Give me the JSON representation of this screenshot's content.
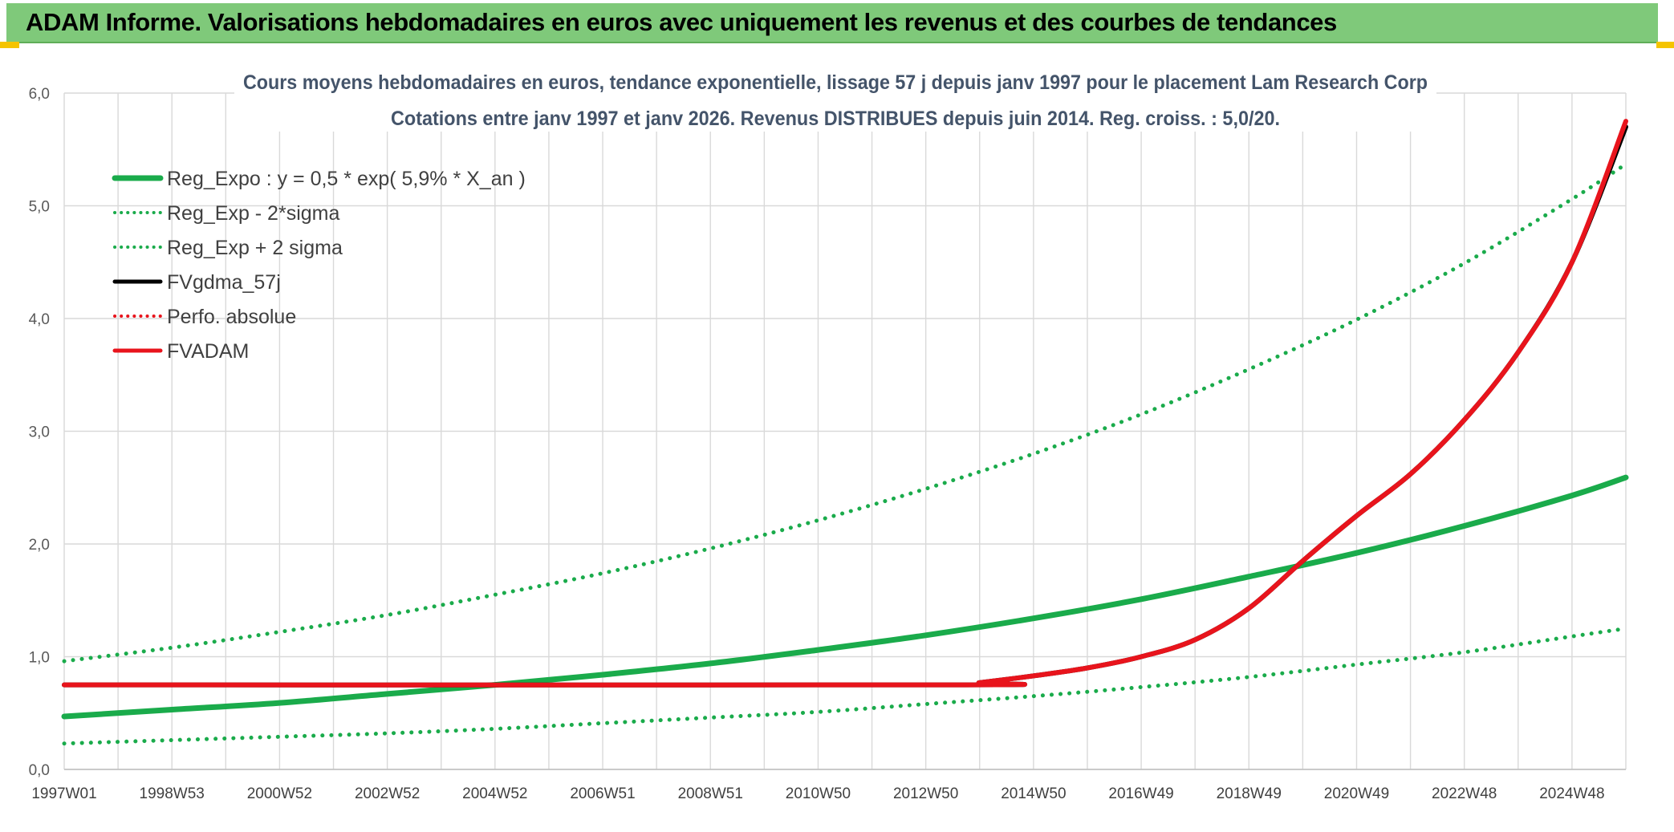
{
  "header": {
    "title": "ADAM Informe. Valorisations hebdomadaires en euros avec uniquement les revenus et des courbes de tendances"
  },
  "colors": {
    "header_bg": "#7fc97a",
    "reg_green": "#1aab4b",
    "fvadam_red": "#e8141c",
    "fvgdma_black": "#000000",
    "corner": "#f5c400"
  },
  "chart_data": {
    "type": "line",
    "title_line1": "Cours moyens hebdomadaires en euros, tendance exponentielle, lissage 57 j depuis janv 1997 pour le placement Lam Research Corp",
    "title_line2": "Cotations entre janv 1997 et janv 2026. Revenus DISTRIBUES depuis juin 2014. Reg. croiss. : 5,0/20.",
    "xlabel": "",
    "ylabel": "",
    "x_range": [
      "1997W01",
      "2026W01"
    ],
    "x_ticks": [
      "1997W01",
      "1998W53",
      "2000W52",
      "2002W52",
      "2004W52",
      "2006W51",
      "2008W51",
      "2010W50",
      "2012W50",
      "2014W50",
      "2016W49",
      "2018W49",
      "2020W49",
      "2022W48",
      "2024W48"
    ],
    "y_ticks": [
      "0,0",
      "1,0",
      "2,0",
      "3,0",
      "4,0",
      "5,0",
      "6,0"
    ],
    "ylim": [
      0,
      6
    ],
    "grid": true,
    "legend_position": "top-left",
    "series": [
      {
        "name": "Reg_Expo : y = 0,5 * exp( 5,9% *  X_an )",
        "color": "#1aab4b",
        "style": "solid",
        "x": [
          1997,
          1999,
          2001,
          2003,
          2005,
          2007,
          2009,
          2011,
          2013,
          2015,
          2017,
          2019,
          2021,
          2023,
          2025,
          2026
        ],
        "y": [
          0.47,
          0.53,
          0.59,
          0.67,
          0.75,
          0.84,
          0.94,
          1.06,
          1.19,
          1.34,
          1.51,
          1.71,
          1.92,
          2.16,
          2.43,
          2.59
        ]
      },
      {
        "name": "Reg_Exp - 2*sigma",
        "color": "#1aab4b",
        "style": "dotted",
        "x": [
          1997,
          1999,
          2001,
          2003,
          2005,
          2007,
          2009,
          2011,
          2013,
          2015,
          2017,
          2019,
          2021,
          2023,
          2025,
          2026
        ],
        "y": [
          0.23,
          0.26,
          0.29,
          0.32,
          0.36,
          0.41,
          0.46,
          0.51,
          0.58,
          0.65,
          0.73,
          0.82,
          0.93,
          1.04,
          1.18,
          1.25
        ]
      },
      {
        "name": "Reg_Exp + 2 sigma",
        "color": "#1aab4b",
        "style": "dotted",
        "x": [
          1997,
          1999,
          2001,
          2003,
          2005,
          2007,
          2009,
          2011,
          2013,
          2015,
          2017,
          2019,
          2021,
          2023,
          2025,
          2026
        ],
        "y": [
          0.96,
          1.08,
          1.22,
          1.37,
          1.55,
          1.74,
          1.96,
          2.21,
          2.49,
          2.8,
          3.15,
          3.55,
          3.99,
          4.49,
          5.06,
          5.37
        ]
      },
      {
        "name": "FVgdma_57j",
        "color": "#000000",
        "style": "solid",
        "x": [
          1997,
          2013.5,
          2014,
          2015,
          2016,
          2017,
          2018,
          2019,
          2020,
          2021,
          2022,
          2023,
          2024,
          2025,
          2026
        ],
        "y": [
          0.75,
          0.75,
          0.77,
          0.83,
          0.9,
          1.0,
          1.15,
          1.43,
          1.85,
          2.25,
          2.62,
          3.1,
          3.7,
          4.5,
          5.7
        ]
      },
      {
        "name": "Perfo. absolue",
        "color": "#e8141c",
        "style": "dotted",
        "x": [
          1997,
          2013.5,
          2014,
          2015,
          2016,
          2017,
          2018,
          2019,
          2020,
          2021,
          2022,
          2023,
          2024,
          2025,
          2026
        ],
        "y": [
          0.75,
          0.75,
          0.77,
          0.83,
          0.9,
          1.0,
          1.15,
          1.43,
          1.85,
          2.25,
          2.62,
          3.1,
          3.7,
          4.5,
          5.75
        ]
      },
      {
        "name": "FVADAM",
        "color": "#e8141c",
        "style": "solid",
        "x": [
          1997,
          2013.5,
          2014,
          2015,
          2016,
          2017,
          2018,
          2019,
          2020,
          2021,
          2022,
          2023,
          2024,
          2025,
          2026
        ],
        "y": [
          0.75,
          0.75,
          0.77,
          0.83,
          0.9,
          1.0,
          1.15,
          1.43,
          1.85,
          2.25,
          2.62,
          3.1,
          3.7,
          4.5,
          5.75
        ]
      }
    ]
  }
}
